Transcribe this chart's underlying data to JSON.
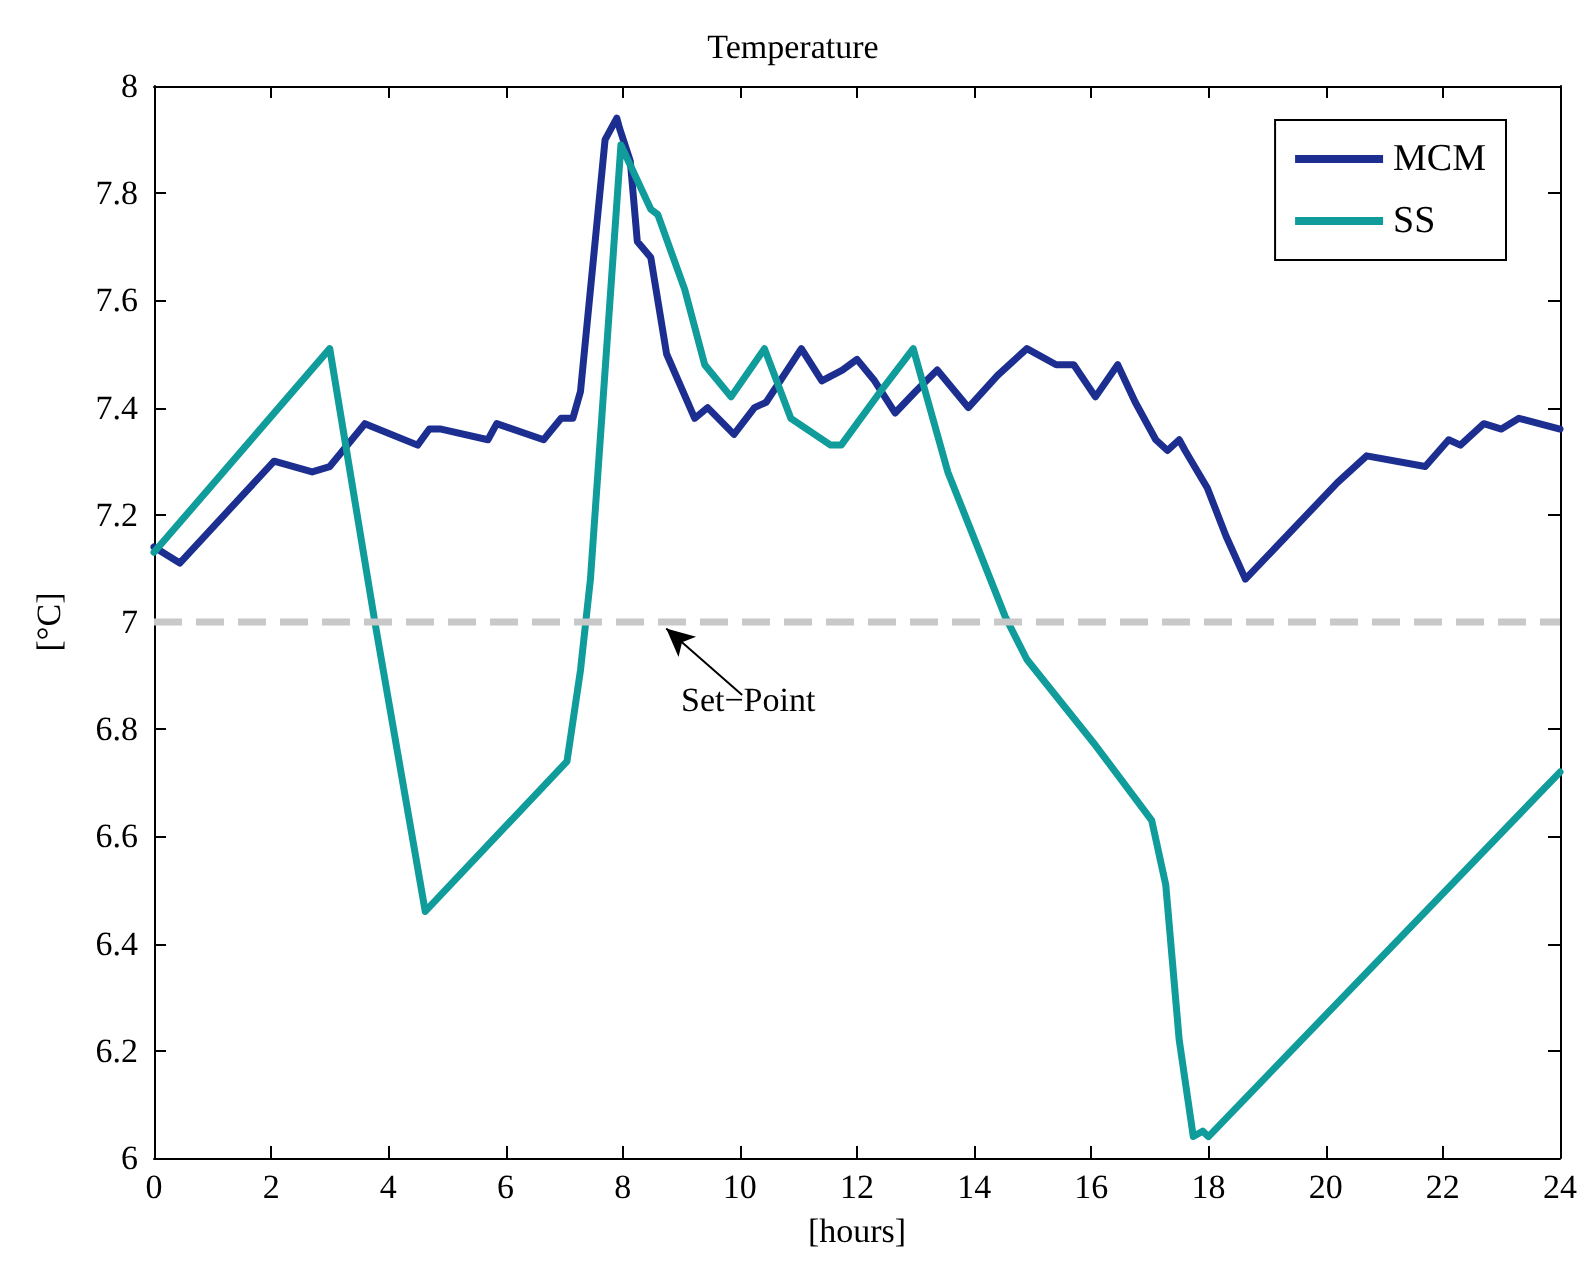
{
  "chart_data": {
    "type": "line",
    "title": "Temperature",
    "xlabel": "[hours]",
    "ylabel": "[°C]",
    "xlim": [
      0,
      24
    ],
    "xticks": [
      0,
      2,
      4,
      6,
      8,
      10,
      12,
      14,
      16,
      18,
      20,
      22,
      24
    ],
    "ylim": [
      6,
      8
    ],
    "yticks": [
      6,
      6.2,
      6.4,
      6.6,
      6.8,
      7,
      7.2,
      7.4,
      7.6,
      7.8,
      8
    ],
    "grid": false,
    "legend": "top right",
    "marker": "none",
    "line_style": "solid",
    "ref_lines": [
      {
        "axis": "y",
        "value": 7,
        "color": "#c8c8c8",
        "line_style": "dashed"
      }
    ],
    "annotations": [
      {
        "text": "Set−Point",
        "x": 8.6,
        "y": 7
      }
    ],
    "series": [
      {
        "name": "MCM",
        "color": "#1c2f91",
        "x": [
          0,
          0.44,
          2.05,
          2.7,
          3.0,
          3.6,
          4.5,
          4.7,
          4.9,
          5.7,
          5.85,
          6.65,
          6.95,
          7.15,
          7.28,
          7.7,
          7.9,
          7.95,
          8.13,
          8.25,
          8.48,
          8.75,
          9.23,
          9.45,
          9.9,
          10.25,
          10.45,
          11.05,
          11.4,
          11.75,
          12.0,
          12.3,
          12.65,
          13.0,
          13.37,
          13.9,
          14.4,
          14.9,
          15.4,
          15.7,
          16.07,
          16.45,
          16.75,
          17.1,
          17.3,
          17.5,
          17.6,
          17.98,
          18.3,
          18.63,
          20.2,
          20.7,
          21.7,
          22.1,
          22.3,
          22.7,
          23.0,
          23.3,
          24
        ],
        "values": [
          7.14,
          7.11,
          7.3,
          7.28,
          7.29,
          7.37,
          7.33,
          7.36,
          7.36,
          7.34,
          7.37,
          7.34,
          7.38,
          7.38,
          7.43,
          7.9,
          7.94,
          7.92,
          7.86,
          7.71,
          7.68,
          7.5,
          7.38,
          7.4,
          7.35,
          7.4,
          7.41,
          7.51,
          7.45,
          7.47,
          7.49,
          7.45,
          7.39,
          7.43,
          7.47,
          7.4,
          7.46,
          7.51,
          7.48,
          7.48,
          7.42,
          7.48,
          7.41,
          7.34,
          7.32,
          7.34,
          7.32,
          7.25,
          7.16,
          7.08,
          7.26,
          7.31,
          7.29,
          7.34,
          7.33,
          7.37,
          7.36,
          7.38,
          7.36
        ]
      },
      {
        "name": "SS",
        "color": "#0f9c9a",
        "x": [
          0,
          3.0,
          3.77,
          4.63,
          7.05,
          7.28,
          7.45,
          7.97,
          8.48,
          8.6,
          9.06,
          9.4,
          9.85,
          10.42,
          10.87,
          11.55,
          11.73,
          12.4,
          12.96,
          13.55,
          14.53,
          14.9,
          16.07,
          17.03,
          17.27,
          17.5,
          17.74,
          17.9,
          18.0,
          24
        ],
        "values": [
          7.13,
          7.51,
          7.0,
          6.46,
          6.74,
          6.91,
          7.08,
          7.89,
          7.77,
          7.76,
          7.62,
          7.48,
          7.42,
          7.51,
          7.38,
          7.33,
          7.33,
          7.43,
          7.51,
          7.28,
          7.01,
          6.93,
          6.77,
          6.63,
          6.51,
          6.22,
          6.04,
          6.05,
          6.04,
          6.72
        ]
      }
    ]
  }
}
